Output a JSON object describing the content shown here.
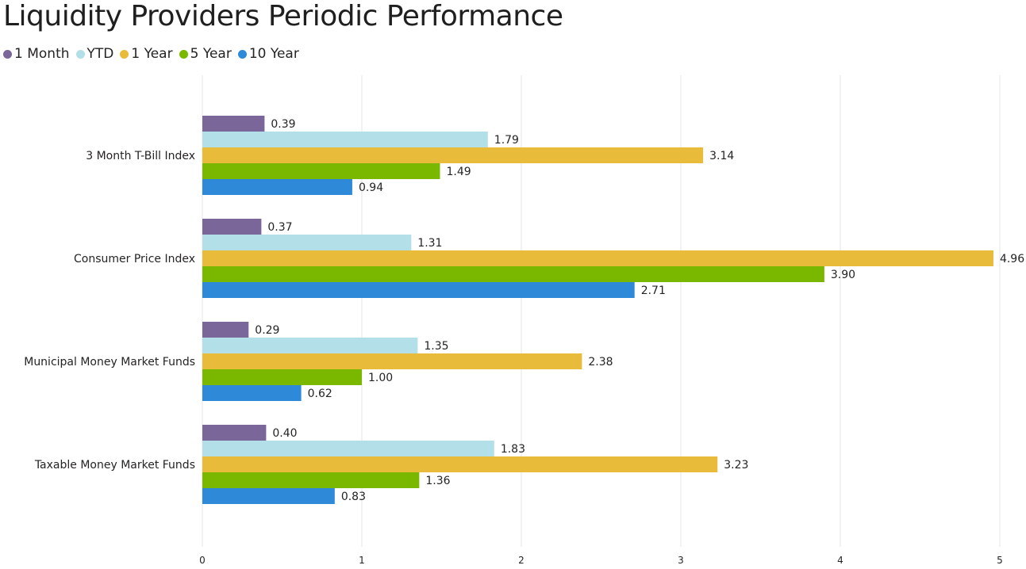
{
  "chart_data": {
    "type": "bar",
    "orientation": "horizontal",
    "title": "Liquidity Providers Periodic Performance",
    "categories": [
      "3 Month T-Bill Index",
      "Consumer Price Index",
      "Municipal Money Market Funds",
      "Taxable Money Market Funds"
    ],
    "series": [
      {
        "name": "1 Month",
        "color": "#7a6698",
        "values": [
          0.39,
          0.37,
          0.29,
          0.4
        ],
        "labels": [
          "0.39",
          "0.37",
          "0.29",
          "0.40"
        ]
      },
      {
        "name": "YTD",
        "color": "#b3dfe8",
        "values": [
          1.79,
          1.31,
          1.35,
          1.83
        ],
        "labels": [
          "1.79",
          "1.31",
          "1.35",
          "1.83"
        ]
      },
      {
        "name": "1 Year",
        "color": "#e9bb3a",
        "values": [
          3.14,
          4.96,
          2.38,
          3.23
        ],
        "labels": [
          "3.14",
          "4.96",
          "2.38",
          "3.23"
        ]
      },
      {
        "name": "5 Year",
        "color": "#7ab800",
        "values": [
          1.49,
          3.9,
          1.0,
          1.36
        ],
        "labels": [
          "1.49",
          "3.90",
          "1.00",
          "1.36"
        ]
      },
      {
        "name": "10 Year",
        "color": "#2e8ad8",
        "values": [
          0.94,
          2.71,
          0.62,
          0.83
        ],
        "labels": [
          "0.94",
          "2.71",
          "0.62",
          "0.83"
        ]
      }
    ],
    "x_ticks": [
      "0",
      "1",
      "2",
      "3",
      "4",
      "5"
    ],
    "xlim": [
      0,
      5
    ],
    "grid": true,
    "legend": "top-left"
  }
}
